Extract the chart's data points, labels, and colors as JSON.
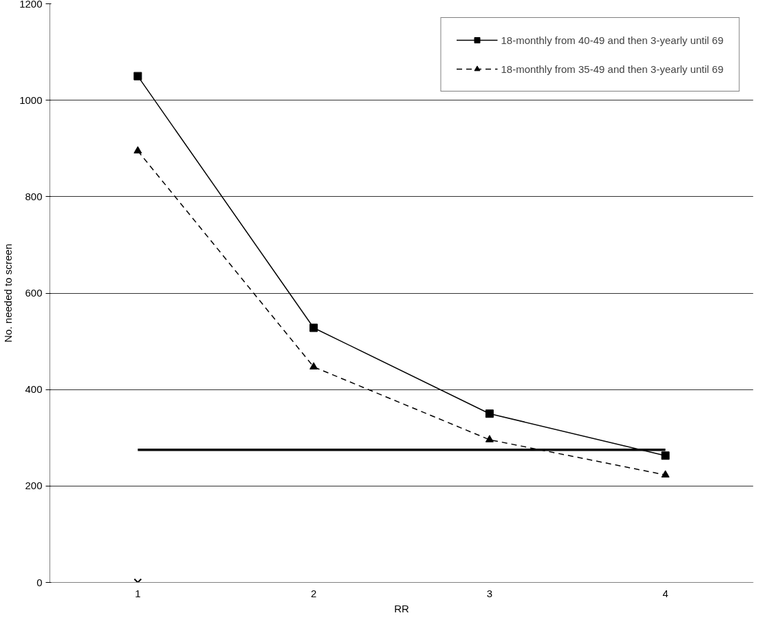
{
  "chart_data": {
    "type": "line",
    "xlabel": "RR",
    "ylabel": "No. needed to screen",
    "categories": [
      "1",
      "2",
      "3",
      "4"
    ],
    "ylim": [
      0,
      1200
    ],
    "yticks": [
      0,
      200,
      400,
      600,
      800,
      1000,
      1200
    ],
    "grid": "y",
    "legend": "top right",
    "series": [
      {
        "name": "18-monthly from 40-49 and then 3-yearly until 69",
        "color": "#000000",
        "values": [
          1050,
          528,
          350,
          263
        ],
        "marker": "square",
        "line_style": "solid"
      },
      {
        "name": "18-monthly from 35-49 and then 3-yearly until 69",
        "color": "#000000",
        "values": [
          895,
          447,
          296,
          223
        ],
        "marker": "triangle",
        "line_style": "dashed"
      },
      {
        "color": "#000000",
        "values": [
          275,
          275,
          275,
          275
        ],
        "marker": "none",
        "line_style": "solid"
      },
      {
        "type": "scatter",
        "color": "#000000",
        "values": [
          0,
          null,
          null,
          null
        ],
        "marker": "cross"
      }
    ]
  }
}
